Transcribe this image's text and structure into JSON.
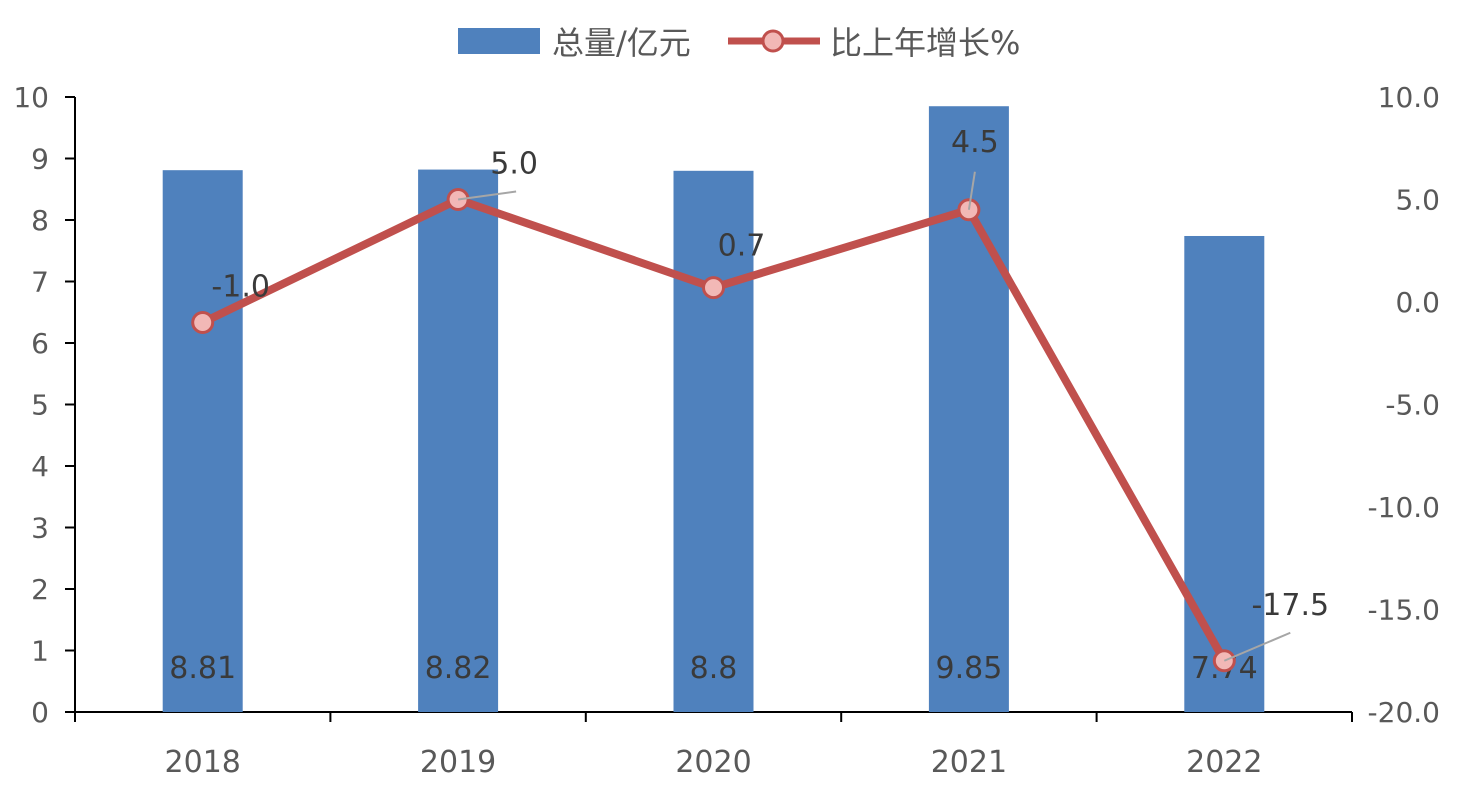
{
  "chart_data": {
    "type": "bar",
    "title": "",
    "categories": [
      "2018",
      "2019",
      "2020",
      "2021",
      "2022"
    ],
    "series": [
      {
        "name": "总量/亿元",
        "type": "bar",
        "axis": "left",
        "color": "#4F81BD",
        "values": [
          8.81,
          8.82,
          8.8,
          9.85,
          7.74
        ],
        "labels": [
          "8.81",
          "8.82",
          "8.8",
          "9.85",
          "7.74"
        ]
      },
      {
        "name": "比上年增长%",
        "type": "line",
        "axis": "right",
        "color": "#C0504D",
        "marker_fill": "#F2B8B6",
        "values": [
          -1.0,
          5.0,
          0.7,
          4.5,
          -17.5
        ],
        "labels": [
          "-1.0",
          "5.0",
          "0.7",
          "4.5",
          "-17.5"
        ]
      }
    ],
    "y_left": {
      "min": 0,
      "max": 10,
      "ticks": [
        "0",
        "1",
        "2",
        "3",
        "4",
        "5",
        "6",
        "7",
        "8",
        "9",
        "10"
      ]
    },
    "y_right": {
      "min": -20,
      "max": 10,
      "ticks": [
        "-20.0",
        "-15.0",
        "-10.0",
        "-5.0",
        "0.0",
        "5.0",
        "10.0"
      ]
    },
    "xlabel": "",
    "ylabel": "",
    "legend": "top-center",
    "grid": false
  }
}
